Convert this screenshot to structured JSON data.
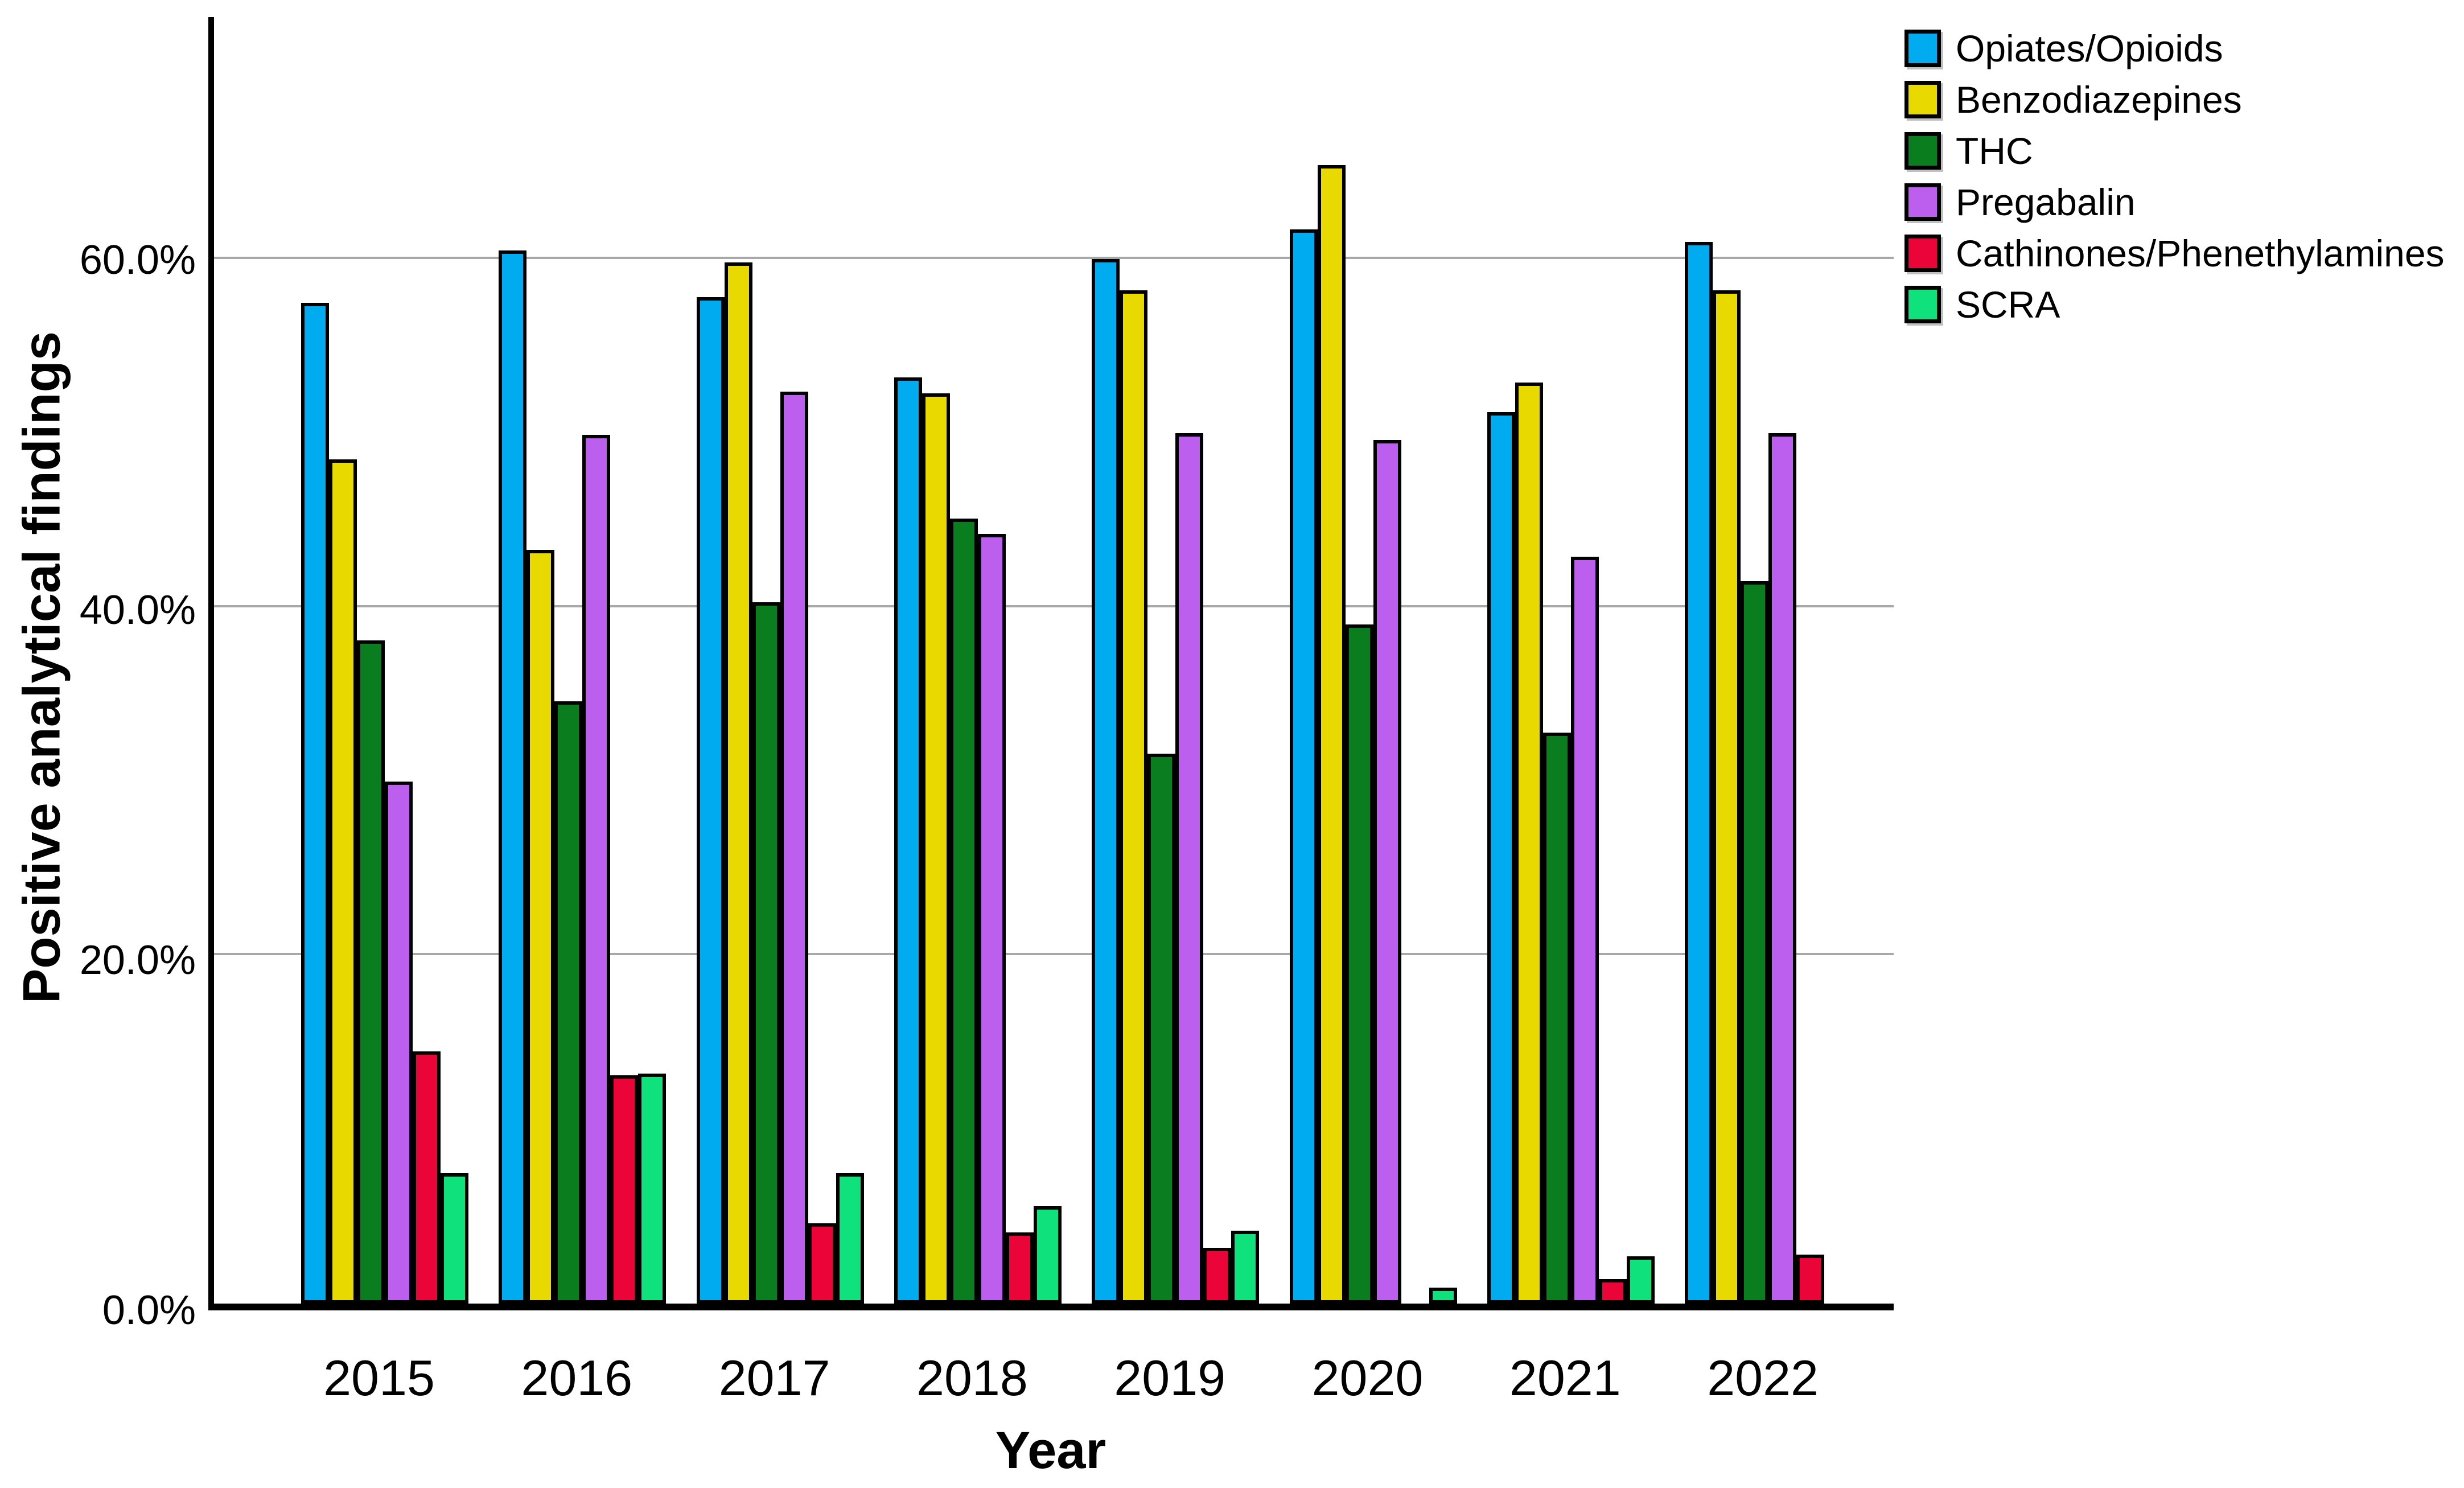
{
  "chart_data": {
    "type": "bar",
    "title": "",
    "xlabel": "Year",
    "ylabel": "Positive analytical findings",
    "categories": [
      "2015",
      "2016",
      "2017",
      "2018",
      "2019",
      "2020",
      "2021",
      "2022"
    ],
    "series": [
      {
        "name": "Opiates/Opioids",
        "color": "#00ABF0",
        "values": [
          57.5,
          60.5,
          57.8,
          53.2,
          60.0,
          61.7,
          51.2,
          61.0
        ]
      },
      {
        "name": "Benzodiazepines",
        "color": "#E8D900",
        "values": [
          48.5,
          43.3,
          59.8,
          52.3,
          58.2,
          65.4,
          52.9,
          58.2
        ]
      },
      {
        "name": "THC",
        "color": "#0A7E1E",
        "values": [
          38.1,
          34.6,
          40.3,
          45.1,
          31.6,
          39.0,
          32.8,
          41.5
        ]
      },
      {
        "name": "Pregabalin",
        "color": "#BC5FEE",
        "values": [
          30.0,
          49.9,
          52.4,
          44.2,
          50.0,
          49.6,
          42.9,
          50.0
        ]
      },
      {
        "name": "Cathinones/Phenethylamines",
        "color": "#EA0437",
        "values": [
          14.5,
          13.1,
          4.6,
          4.1,
          3.2,
          0.0,
          1.4,
          2.8
        ]
      },
      {
        "name": "SCRA",
        "color": "#0FE17C",
        "values": [
          7.5,
          13.2,
          7.5,
          5.6,
          4.2,
          0.9,
          2.7,
          0.0
        ]
      }
    ],
    "y_ticks": [
      {
        "label": "0.0%",
        "value": 0
      },
      {
        "label": "20.0%",
        "value": 20
      },
      {
        "label": "40.0%",
        "value": 40
      },
      {
        "label": "60.0%",
        "value": 60
      }
    ],
    "y_gridlines": [
      20,
      40,
      60
    ],
    "ylim": [
      0,
      73.9
    ],
    "grid": "horizontal-only",
    "legend_position": "top-right",
    "axis_color": "#000000",
    "gridline_color": "#a8a8a8",
    "background_color": "#ffffff"
  }
}
